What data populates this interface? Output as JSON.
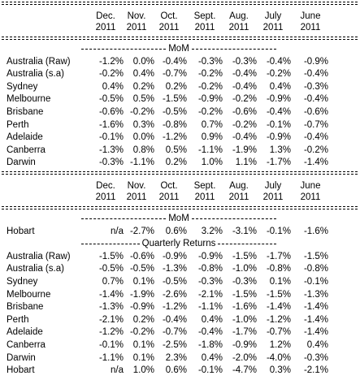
{
  "sections": [
    {
      "header": [
        [
          "Dec.",
          "2011"
        ],
        [
          "Nov.",
          "2011"
        ],
        [
          "Oct.",
          "2011"
        ],
        [
          "Sept.",
          "2011"
        ],
        [
          "Aug.",
          "2011"
        ],
        [
          "July",
          "2011"
        ],
        [
          "June",
          "2011"
        ]
      ],
      "groups": [
        {
          "title": "MoM",
          "rows": [
            {
              "label": "Australia (Raw)",
              "values": [
                "-1.2%",
                "0.0%",
                "-0.4%",
                "-0.3%",
                "-0.3%",
                "-0.4%",
                "-0.9%"
              ]
            },
            {
              "label": "Australia (s.a)",
              "values": [
                "-0.2%",
                "0.4%",
                "-0.7%",
                "-0.2%",
                "-0.4%",
                "-0.2%",
                "-0.4%"
              ]
            },
            {
              "label": "Sydney",
              "values": [
                "0.4%",
                "0.2%",
                "0.2%",
                "-0.2%",
                "-0.4%",
                "0.4%",
                "-0.3%"
              ]
            },
            {
              "label": "Melbourne",
              "values": [
                "-0.5%",
                "0.5%",
                "-1.5%",
                "-0.9%",
                "-0.2%",
                "-0.9%",
                "-0.4%"
              ]
            },
            {
              "label": "Brisbane",
              "values": [
                "-0.6%",
                "-0.2%",
                "-0.5%",
                "-0.2%",
                "-0.6%",
                "-0.4%",
                "-0.6%"
              ]
            },
            {
              "label": "Perth",
              "values": [
                "-1.6%",
                "0.3%",
                "-0.8%",
                "0.7%",
                "-0.2%",
                "-0.1%",
                "-0.7%"
              ]
            },
            {
              "label": "Adelaide",
              "values": [
                "-0.1%",
                "0.0%",
                "-1.2%",
                "0.9%",
                "-0.4%",
                "-0.9%",
                "-0.4%"
              ]
            },
            {
              "label": "Canberra",
              "values": [
                "-1.3%",
                "0.8%",
                "0.5%",
                "-1.1%",
                "-1.9%",
                "1.3%",
                "-0.2%"
              ]
            },
            {
              "label": "Darwin",
              "values": [
                "-0.3%",
                "-1.1%",
                "0.2%",
                "1.0%",
                "1.1%",
                "-1.7%",
                "-1.4%"
              ]
            }
          ]
        }
      ]
    },
    {
      "header": [
        [
          "Dec.",
          "2011"
        ],
        [
          "Nov.",
          "2011"
        ],
        [
          "Oct.",
          "2011"
        ],
        [
          "Sept.",
          "2011"
        ],
        [
          "Aug.",
          "2011"
        ],
        [
          "July",
          "2011"
        ],
        [
          "June",
          "2011"
        ]
      ],
      "groups": [
        {
          "title": "MoM",
          "rows": [
            {
              "label": "Hobart",
              "values": [
                "n/a",
                "-2.7%",
                "0.6%",
                "3.2%",
                "-3.1%",
                "-0.1%",
                "-1.6%"
              ]
            }
          ]
        },
        {
          "title": "Quarterly Returns",
          "rows": [
            {
              "label": "Australia (Raw)",
              "values": [
                "-1.5%",
                "-0.6%",
                "-0.9%",
                "-0.9%",
                "-1.5%",
                "-1.7%",
                "-1.5%"
              ]
            },
            {
              "label": "Australia (s.a)",
              "values": [
                "-0.5%",
                "-0.5%",
                "-1.3%",
                "-0.8%",
                "-1.0%",
                "-0.8%",
                "-0.8%"
              ]
            },
            {
              "label": "Sydney",
              "values": [
                "0.7%",
                "0.1%",
                "-0.5%",
                "-0.3%",
                "-0.3%",
                "0.1%",
                "-0.1%"
              ]
            },
            {
              "label": "Melbourne",
              "values": [
                "-1.4%",
                "-1.9%",
                "-2.6%",
                "-2.1%",
                "-1.5%",
                "-1.5%",
                "-1.3%"
              ]
            },
            {
              "label": "Brisbane",
              "values": [
                "-1.3%",
                "-0.9%",
                "-1.2%",
                "-1.1%",
                "-1.6%",
                "-1.4%",
                "-1.4%"
              ]
            },
            {
              "label": "Perth",
              "values": [
                "-2.1%",
                "0.2%",
                "-0.4%",
                "0.4%",
                "-1.0%",
                "-1.2%",
                "-1.4%"
              ]
            },
            {
              "label": "Adelaide",
              "values": [
                "-1.2%",
                "-0.2%",
                "-0.7%",
                "-0.4%",
                "-1.7%",
                "-0.7%",
                "-1.4%"
              ]
            },
            {
              "label": "Canberra",
              "values": [
                "-0.1%",
                "0.1%",
                "-2.5%",
                "-1.8%",
                "-0.9%",
                "1.2%",
                "0.4%"
              ]
            },
            {
              "label": "Darwin",
              "values": [
                "-1.1%",
                "0.1%",
                "2.3%",
                "0.4%",
                "-2.0%",
                "-4.0%",
                "-0.3%"
              ]
            },
            {
              "label": "Hobart",
              "values": [
                "n/a",
                "1.0%",
                "0.6%",
                "-0.1%",
                "-4.7%",
                "0.3%",
                "-2.1%"
              ]
            }
          ]
        }
      ]
    }
  ]
}
